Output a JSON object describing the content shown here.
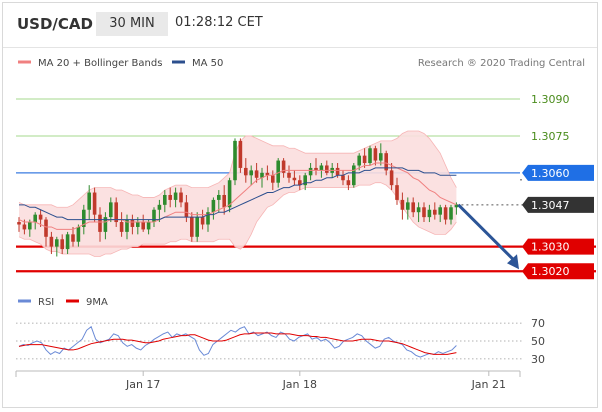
{
  "header": {
    "symbol": "USD/CAD",
    "timeframe": "30 MIN",
    "time": "01:28:12 CET"
  },
  "legend": {
    "ma20_label": "MA 20 + Bollinger Bands",
    "ma50_label": "MA 50",
    "ma20_color": "#f08080",
    "ma50_color": "#2c4f8e",
    "copyright": "Research ® 2020 Trading Central"
  },
  "rsi_legend": {
    "rsi_label": "RSI",
    "ma9_label": "9MA",
    "rsi_color": "#6a8ad6",
    "ma9_color": "#e00000"
  },
  "chart_data": [
    {
      "type": "candlestick",
      "ylim": [
        1.3014,
        1.3101
      ],
      "x_ticks": [
        {
          "label": "Jan 17",
          "index": 23
        },
        {
          "label": "Jan 18",
          "index": 52
        },
        {
          "label": "Jan 21",
          "index": 87
        }
      ],
      "levels": [
        {
          "value": 1.309,
          "label": "1.3090",
          "style": "resistance-green"
        },
        {
          "value": 1.3075,
          "label": "1.3075",
          "style": "resistance-green"
        },
        {
          "value": 1.306,
          "label": "1.3060",
          "style": "pivot-blue"
        },
        {
          "value": 1.3047,
          "label": "1.3047",
          "style": "last-price"
        },
        {
          "value": 1.303,
          "label": "1.3030",
          "style": "support-red"
        },
        {
          "value": 1.302,
          "label": "1.3020",
          "style": "support-red"
        }
      ],
      "candles": [
        [
          1.304,
          1.3042,
          1.3036,
          1.3039
        ],
        [
          1.3039,
          1.3041,
          1.3035,
          1.3037
        ],
        [
          1.3037,
          1.3041,
          1.3034,
          1.304
        ],
        [
          1.304,
          1.3044,
          1.3037,
          1.3043
        ],
        [
          1.3043,
          1.3045,
          1.3038,
          1.3041
        ],
        [
          1.3041,
          1.3042,
          1.303,
          1.3034
        ],
        [
          1.3034,
          1.3036,
          1.3027,
          1.303
        ],
        [
          1.303,
          1.3034,
          1.3026,
          1.3033
        ],
        [
          1.3033,
          1.3035,
          1.3027,
          1.3029
        ],
        [
          1.3029,
          1.3036,
          1.3027,
          1.3035
        ],
        [
          1.3035,
          1.3038,
          1.303,
          1.3032
        ],
        [
          1.3032,
          1.3039,
          1.303,
          1.3038
        ],
        [
          1.3038,
          1.3047,
          1.3035,
          1.3045
        ],
        [
          1.3045,
          1.3055,
          1.3041,
          1.3052
        ],
        [
          1.3052,
          1.3054,
          1.304,
          1.3043
        ],
        [
          1.3043,
          1.3046,
          1.3032,
          1.3036
        ],
        [
          1.3036,
          1.3044,
          1.3033,
          1.3042
        ],
        [
          1.3042,
          1.305,
          1.304,
          1.3048
        ],
        [
          1.3048,
          1.305,
          1.3038,
          1.304
        ],
        [
          1.304,
          1.3044,
          1.3034,
          1.3036
        ],
        [
          1.3036,
          1.3043,
          1.3033,
          1.3041
        ],
        [
          1.3041,
          1.3043,
          1.3035,
          1.3038
        ],
        [
          1.3038,
          1.3042,
          1.3035,
          1.304
        ],
        [
          1.304,
          1.3043,
          1.3036,
          1.3037
        ],
        [
          1.3037,
          1.3041,
          1.3035,
          1.304
        ],
        [
          1.304,
          1.3046,
          1.3038,
          1.3045
        ],
        [
          1.3045,
          1.3049,
          1.304,
          1.3047
        ],
        [
          1.3047,
          1.3053,
          1.3044,
          1.3051
        ],
        [
          1.3051,
          1.3054,
          1.3046,
          1.3049
        ],
        [
          1.3049,
          1.3054,
          1.3046,
          1.3052
        ],
        [
          1.3052,
          1.3054,
          1.3046,
          1.3048
        ],
        [
          1.3048,
          1.3051,
          1.304,
          1.3042
        ],
        [
          1.3042,
          1.3044,
          1.3032,
          1.3034
        ],
        [
          1.3034,
          1.3044,
          1.3032,
          1.3042
        ],
        [
          1.3042,
          1.3045,
          1.3037,
          1.3039
        ],
        [
          1.3039,
          1.3046,
          1.3036,
          1.3044
        ],
        [
          1.3044,
          1.305,
          1.3041,
          1.3049
        ],
        [
          1.3049,
          1.3053,
          1.3044,
          1.3051
        ],
        [
          1.3051,
          1.3055,
          1.3043,
          1.3046
        ],
        [
          1.3046,
          1.3058,
          1.3044,
          1.3057
        ],
        [
          1.3057,
          1.3074,
          1.3055,
          1.3073
        ],
        [
          1.3073,
          1.3074,
          1.306,
          1.3062
        ],
        [
          1.3062,
          1.3066,
          1.3056,
          1.3059
        ],
        [
          1.3059,
          1.3063,
          1.3055,
          1.3061
        ],
        [
          1.3061,
          1.3064,
          1.3056,
          1.3058
        ],
        [
          1.3058,
          1.3062,
          1.3054,
          1.306
        ],
        [
          1.306,
          1.3063,
          1.3057,
          1.3059
        ],
        [
          1.3059,
          1.3061,
          1.3053,
          1.3056
        ],
        [
          1.3056,
          1.3066,
          1.3054,
          1.3065
        ],
        [
          1.3065,
          1.3066,
          1.3058,
          1.306
        ],
        [
          1.306,
          1.3063,
          1.3056,
          1.3058
        ],
        [
          1.3058,
          1.3061,
          1.3055,
          1.3057
        ],
        [
          1.3057,
          1.3059,
          1.3053,
          1.3055
        ],
        [
          1.3055,
          1.306,
          1.3053,
          1.3059
        ],
        [
          1.3059,
          1.3064,
          1.3057,
          1.3062
        ],
        [
          1.3062,
          1.3066,
          1.3059,
          1.3061
        ],
        [
          1.3061,
          1.3064,
          1.3058,
          1.3063
        ],
        [
          1.3063,
          1.3065,
          1.3059,
          1.306
        ],
        [
          1.306,
          1.3064,
          1.3058,
          1.3062
        ],
        [
          1.3062,
          1.3064,
          1.3058,
          1.3059
        ],
        [
          1.3059,
          1.3061,
          1.3055,
          1.3057
        ],
        [
          1.3057,
          1.3059,
          1.3053,
          1.3055
        ],
        [
          1.3055,
          1.3064,
          1.3054,
          1.3063
        ],
        [
          1.3063,
          1.3068,
          1.3061,
          1.3067
        ],
        [
          1.3067,
          1.307,
          1.3062,
          1.3064
        ],
        [
          1.3064,
          1.3071,
          1.3063,
          1.307
        ],
        [
          1.307,
          1.3071,
          1.3063,
          1.3065
        ],
        [
          1.3065,
          1.3072,
          1.3063,
          1.3068
        ],
        [
          1.3068,
          1.3069,
          1.3059,
          1.3061
        ],
        [
          1.3061,
          1.3064,
          1.3053,
          1.3055
        ],
        [
          1.3055,
          1.3058,
          1.3047,
          1.3049
        ],
        [
          1.3049,
          1.3052,
          1.3041,
          1.3045
        ],
        [
          1.3045,
          1.305,
          1.3041,
          1.3048
        ],
        [
          1.3048,
          1.305,
          1.3042,
          1.3044
        ],
        [
          1.3044,
          1.3048,
          1.304,
          1.3046
        ],
        [
          1.3046,
          1.3048,
          1.304,
          1.3042
        ],
        [
          1.3042,
          1.3047,
          1.304,
          1.3045
        ],
        [
          1.3045,
          1.3048,
          1.3041,
          1.3043
        ],
        [
          1.3043,
          1.3047,
          1.304,
          1.3046
        ],
        [
          1.3046,
          1.3047,
          1.3039,
          1.3041
        ],
        [
          1.3041,
          1.3047,
          1.3039,
          1.3046
        ],
        [
          1.3046,
          1.3048,
          1.3043,
          1.3047
        ]
      ],
      "ma20": [
        1.3041,
        1.304,
        1.304,
        1.304,
        1.3039,
        1.3038,
        1.3038,
        1.3037,
        1.3037,
        1.3037,
        1.3037,
        1.3038,
        1.3039,
        1.304,
        1.304,
        1.304,
        1.304,
        1.3041,
        1.3041,
        1.3041,
        1.304,
        1.304,
        1.304,
        1.304,
        1.304,
        1.304,
        1.3041,
        1.3042,
        1.3043,
        1.3044,
        1.3044,
        1.3044,
        1.3043,
        1.3043,
        1.3043,
        1.3043,
        1.3044,
        1.3045,
        1.3046,
        1.3047,
        1.3049,
        1.3051,
        1.3053,
        1.3055,
        1.3057,
        1.3058,
        1.3059,
        1.3059,
        1.306,
        1.3061,
        1.3061,
        1.3061,
        1.3061,
        1.3061,
        1.3061,
        1.3061,
        1.3061,
        1.3061,
        1.3061,
        1.3061,
        1.3061,
        1.3061,
        1.3061,
        1.3062,
        1.3063,
        1.3063,
        1.3064,
        1.3064,
        1.3064,
        1.3063,
        1.3062,
        1.3061,
        1.306,
        1.3058,
        1.3057,
        1.3055,
        1.3053,
        1.3052,
        1.305,
        1.3049,
        1.3048,
        1.3047
      ],
      "ma50": [
        1.3047,
        1.3047,
        1.3046,
        1.3046,
        1.3045,
        1.3044,
        1.3043,
        1.3042,
        1.3042,
        1.3041,
        1.3041,
        1.3041,
        1.3041,
        1.3041,
        1.3041,
        1.3041,
        1.3041,
        1.3041,
        1.3041,
        1.3041,
        1.3041,
        1.3041,
        1.3041,
        1.3041,
        1.3041,
        1.3041,
        1.3041,
        1.3042,
        1.3042,
        1.3042,
        1.3042,
        1.3042,
        1.3042,
        1.3042,
        1.3042,
        1.3043,
        1.3043,
        1.3044,
        1.3044,
        1.3045,
        1.3046,
        1.3047,
        1.3048,
        1.3049,
        1.305,
        1.3051,
        1.3052,
        1.3052,
        1.3053,
        1.3054,
        1.3054,
        1.3055,
        1.3055,
        1.3056,
        1.3056,
        1.3057,
        1.3057,
        1.3058,
        1.3058,
        1.3059,
        1.3059,
        1.306,
        1.306,
        1.306,
        1.3061,
        1.3061,
        1.3062,
        1.3062,
        1.3062,
        1.3062,
        1.3062,
        1.3062,
        1.3061,
        1.3061,
        1.3061,
        1.306,
        1.306,
        1.306,
        1.3059,
        1.3059,
        1.3059,
        1.3059
      ],
      "bb_upper": [
        1.3048,
        1.3047,
        1.3047,
        1.3047,
        1.3047,
        1.3047,
        1.3047,
        1.3046,
        1.3046,
        1.3046,
        1.3047,
        1.3049,
        1.3051,
        1.3053,
        1.3054,
        1.3054,
        1.3054,
        1.3054,
        1.3053,
        1.3053,
        1.3052,
        1.3051,
        1.3051,
        1.305,
        1.305,
        1.305,
        1.3051,
        1.3053,
        1.3054,
        1.3055,
        1.3055,
        1.3055,
        1.3054,
        1.3054,
        1.3054,
        1.3054,
        1.3055,
        1.3056,
        1.3058,
        1.306,
        1.3068,
        1.3073,
        1.3075,
        1.3075,
        1.3074,
        1.3073,
        1.3072,
        1.3071,
        1.3071,
        1.3071,
        1.307,
        1.307,
        1.3069,
        1.3068,
        1.3068,
        1.3068,
        1.3068,
        1.3068,
        1.3068,
        1.3068,
        1.3068,
        1.3068,
        1.3068,
        1.3069,
        1.307,
        1.3071,
        1.3072,
        1.3073,
        1.3073,
        1.3073,
        1.3074,
        1.3076,
        1.3077,
        1.3077,
        1.3077,
        1.3076,
        1.3074,
        1.3071,
        1.3068,
        1.3063,
        1.3058,
        1.3054
      ],
      "bb_lower": [
        1.3034,
        1.3033,
        1.3033,
        1.3032,
        1.3031,
        1.3029,
        1.3028,
        1.3028,
        1.3027,
        1.3027,
        1.3027,
        1.3027,
        1.3027,
        1.3027,
        1.3026,
        1.3026,
        1.3027,
        1.3027,
        1.3028,
        1.3029,
        1.3029,
        1.303,
        1.303,
        1.3031,
        1.3031,
        1.3031,
        1.3031,
        1.3031,
        1.3032,
        1.3032,
        1.3033,
        1.3033,
        1.3032,
        1.3032,
        1.3032,
        1.3032,
        1.3032,
        1.3033,
        1.3033,
        1.3033,
        1.303,
        1.3029,
        1.3031,
        1.3035,
        1.304,
        1.3043,
        1.3046,
        1.3047,
        1.3049,
        1.3051,
        1.3052,
        1.3052,
        1.3053,
        1.3054,
        1.3054,
        1.3054,
        1.3054,
        1.3054,
        1.3054,
        1.3054,
        1.3054,
        1.3054,
        1.3054,
        1.3055,
        1.3055,
        1.3055,
        1.3056,
        1.3056,
        1.3055,
        1.3053,
        1.305,
        1.3046,
        1.3043,
        1.304,
        1.3038,
        1.3037,
        1.3036,
        1.3035,
        1.3035,
        1.3035,
        1.3037,
        1.304
      ]
    },
    {
      "type": "line",
      "name": "RSI",
      "ylim": [
        22,
        78
      ],
      "y_ticks": [
        70,
        50,
        30
      ],
      "levels": [
        70,
        50,
        30
      ],
      "rsi": [
        44,
        46,
        45,
        48,
        50,
        48,
        40,
        35,
        38,
        36,
        42,
        40,
        44,
        48,
        52,
        62,
        66,
        52,
        48,
        50,
        52,
        58,
        56,
        48,
        44,
        46,
        42,
        40,
        45,
        48,
        52,
        55,
        58,
        60,
        54,
        58,
        56,
        58,
        55,
        52,
        40,
        34,
        36,
        46,
        50,
        54,
        58,
        62,
        60,
        64,
        66,
        58,
        60,
        56,
        58,
        60,
        56,
        54,
        60,
        58,
        52,
        50,
        54,
        56,
        58,
        52,
        54,
        50,
        52,
        48,
        42,
        44,
        50,
        52,
        54,
        58,
        56,
        50,
        46,
        42,
        44,
        52,
        54,
        50,
        48,
        46,
        40,
        38,
        34,
        32,
        34,
        36,
        35,
        38,
        36,
        38,
        40,
        45
      ],
      "ma9": [
        44,
        45,
        46,
        46,
        46,
        46,
        45,
        44,
        43,
        42,
        41,
        40,
        40,
        41,
        43,
        45,
        47,
        48,
        49,
        50,
        51,
        52,
        52,
        52,
        51,
        51,
        50,
        49,
        48,
        48,
        49,
        50,
        52,
        53,
        54,
        55,
        56,
        56,
        57,
        57,
        55,
        53,
        51,
        50,
        50,
        50,
        51,
        53,
        55,
        57,
        58,
        58,
        59,
        59,
        59,
        59,
        59,
        58,
        58,
        58,
        58,
        57,
        56,
        56,
        56,
        55,
        55,
        54,
        54,
        53,
        52,
        51,
        50,
        50,
        50,
        51,
        52,
        52,
        52,
        51,
        50,
        50,
        50,
        49,
        48,
        47,
        45,
        43,
        41,
        39,
        37,
        36,
        35,
        35,
        35,
        35,
        36,
        37
      ]
    }
  ]
}
